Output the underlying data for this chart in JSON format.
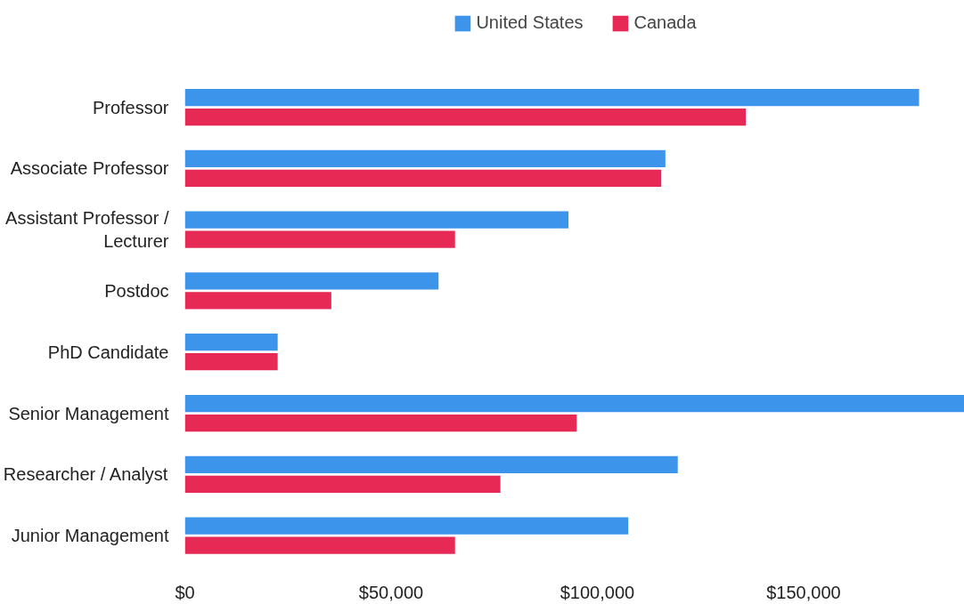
{
  "chart_data": {
    "type": "bar",
    "orientation": "horizontal",
    "categories": [
      "Professor",
      "Associate Professor",
      "Assistant Professor / Lecturer",
      "Postdoc",
      "PhD Candidate",
      "Senior Management",
      "Researcher / Analyst",
      "Junior Management"
    ],
    "series": [
      {
        "name": "United States",
        "color": "#3d94eb",
        "values": [
          178000,
          116500,
          93000,
          61500,
          22500,
          189000,
          119500,
          107500
        ]
      },
      {
        "name": "Canada",
        "color": "#e62a55",
        "values": [
          136000,
          115500,
          65500,
          35500,
          22500,
          95000,
          76500,
          65500
        ]
      }
    ],
    "xlim": [
      0,
      189000
    ],
    "xticks": [
      {
        "value": 0,
        "label": "$0"
      },
      {
        "value": 50000,
        "label": "$50,000"
      },
      {
        "value": 100000,
        "label": "$100,000"
      },
      {
        "value": 150000,
        "label": "$150,000"
      }
    ],
    "grid": false,
    "legend": "top"
  }
}
